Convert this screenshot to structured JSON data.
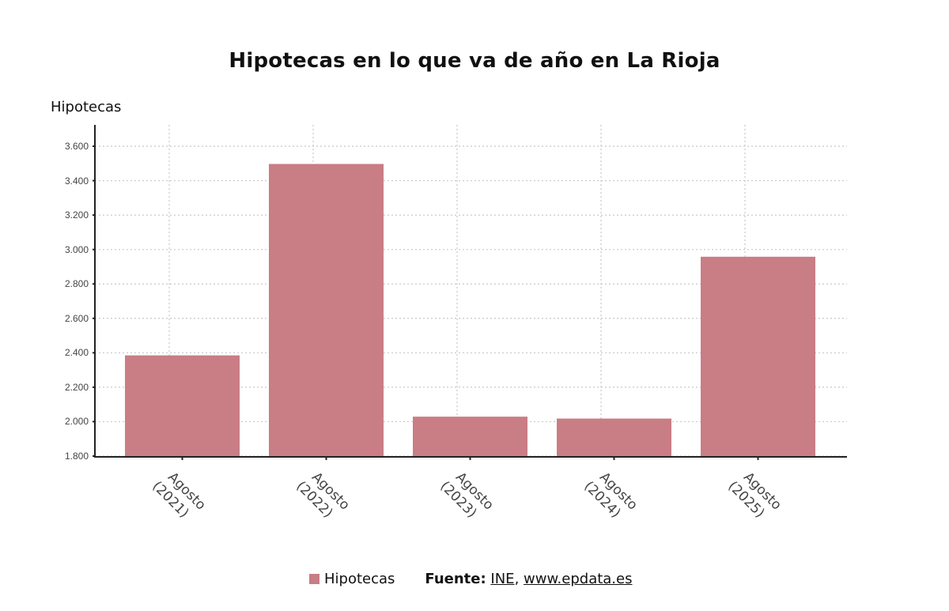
{
  "title": "Hipotecas en lo que va de año en La Rioja",
  "y_axis_label": "Hipotecas",
  "legend": {
    "series_label": "Hipotecas",
    "source_label": "Fuente:",
    "source_link_1": "INE",
    "separator": ",",
    "source_link_2": "www.epdata.es"
  },
  "colors": {
    "bar": "#c97d85",
    "axis": "#222222",
    "grid": "#c8c8c8"
  },
  "chart_data": {
    "type": "bar",
    "title": "Hipotecas en lo que va de año en La Rioja",
    "xlabel": "",
    "ylabel": "Hipotecas",
    "categories": [
      "Agosto (2021)",
      "Agosto (2022)",
      "Agosto (2023)",
      "Agosto (2024)",
      "Agosto (2025)"
    ],
    "category_lines": [
      [
        "Agosto",
        "(2021)"
      ],
      [
        "Agosto",
        "(2022)"
      ],
      [
        "Agosto",
        "(2023)"
      ],
      [
        "Agosto",
        "(2024)"
      ],
      [
        "Agosto",
        "(2025)"
      ]
    ],
    "series": [
      {
        "name": "Hipotecas",
        "values": [
          2385,
          3497,
          2029,
          2018,
          2958
        ]
      }
    ],
    "ylim": [
      1800,
      3700
    ],
    "yticks": [
      1800,
      2000,
      2200,
      2400,
      2600,
      2800,
      3000,
      3200,
      3400,
      3600
    ],
    "ytick_labels": [
      "1.800",
      "2.000",
      "2.200",
      "2.400",
      "2.600",
      "2.800",
      "3.000",
      "3.200",
      "3.400",
      "3.600"
    ],
    "grid": true,
    "legend_position": "bottom",
    "source": "Fuente: INE, www.epdata.es"
  }
}
